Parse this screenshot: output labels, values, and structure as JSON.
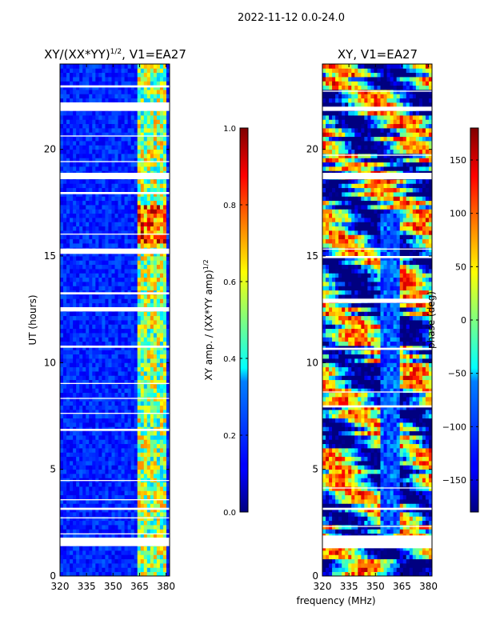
{
  "figure": {
    "suptitle": "2022-11-12 0.0-24.0",
    "xlabel_shared": "frequency (MHz)"
  },
  "chart_data": [
    {
      "type": "heatmap",
      "title_main": "XY/(XX*YY)",
      "title_sup": "1/2",
      "title_tail": ", V1=EA27",
      "ylabel": "UT (hours)",
      "xlim": [
        320,
        382
      ],
      "ylim": [
        0,
        24
      ],
      "xticks": [
        320,
        335,
        350,
        365,
        380
      ],
      "yticks": [
        0,
        5,
        10,
        15,
        20
      ],
      "quantity": "normalized XY amplitude",
      "background_level": 0.1,
      "bright_band_MHz": [
        364,
        380
      ],
      "gaps_UT": [
        [
          1.4,
          1.8
        ],
        [
          1.95,
          2.0
        ],
        [
          2.7,
          2.75
        ],
        [
          3.1,
          3.2
        ],
        [
          3.55,
          3.6
        ],
        [
          4.45,
          4.5
        ],
        [
          6.8,
          6.9
        ],
        [
          7.6,
          7.65
        ],
        [
          8.3,
          8.35
        ],
        [
          9.0,
          9.05
        ],
        [
          10.7,
          10.8
        ],
        [
          12.4,
          12.6
        ],
        [
          13.2,
          13.3
        ],
        [
          15.1,
          15.35
        ],
        [
          16.0,
          16.05
        ],
        [
          17.9,
          18.0
        ],
        [
          18.6,
          18.9
        ],
        [
          19.4,
          19.45
        ],
        [
          20.6,
          20.65
        ],
        [
          21.8,
          22.2
        ],
        [
          22.9,
          23.0
        ]
      ],
      "colorbar": {
        "ticks": [
          "0.0",
          "0.2",
          "0.4",
          "0.6",
          "0.8",
          "1.0"
        ],
        "tick_values": [
          0,
          0.2,
          0.4,
          0.6,
          0.8,
          1.0
        ],
        "range": [
          0,
          1
        ],
        "label_main": "XY amp. / (XX*YY amp)",
        "label_sup": "1/2"
      }
    },
    {
      "type": "heatmap",
      "title": "XY, V1=EA27",
      "xlim": [
        320,
        382
      ],
      "ylim": [
        0,
        24
      ],
      "xticks": [
        320,
        335,
        350,
        365,
        380
      ],
      "yticks": [
        0,
        5,
        10,
        15,
        20
      ],
      "quantity": "XY phase (degrees)",
      "low_phase_column_MHz": [
        352,
        363
      ],
      "gaps_UT": [
        [
          1.3,
          1.9
        ],
        [
          2.3,
          2.35
        ],
        [
          3.1,
          3.2
        ],
        [
          4.1,
          4.15
        ],
        [
          7.9,
          8.0
        ],
        [
          8.6,
          8.65
        ],
        [
          10.6,
          10.7
        ],
        [
          12.8,
          13.0
        ],
        [
          14.9,
          15.0
        ],
        [
          15.3,
          15.35
        ],
        [
          18.6,
          18.9
        ],
        [
          19.7,
          19.75
        ],
        [
          21.8,
          22.0
        ],
        [
          22.7,
          22.75
        ]
      ],
      "colorbar": {
        "ticks": [
          "−150",
          "−100",
          "−50",
          "0",
          "50",
          "100",
          "150"
        ],
        "tick_values": [
          -150,
          -100,
          -50,
          0,
          50,
          100,
          150
        ],
        "range": [
          -180,
          180
        ],
        "label": "phase (deg)"
      }
    }
  ]
}
